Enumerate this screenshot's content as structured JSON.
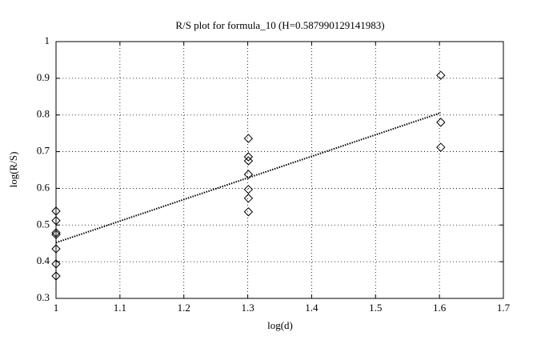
{
  "chart_data": {
    "type": "scatter",
    "title": "R/S plot for formula_10 (H=0.587990129141983)",
    "x_label": "log(d)",
    "y_label": "log(R/S)",
    "xlim": [
      1,
      1.7
    ],
    "ylim": [
      0.3,
      1
    ],
    "xticks": [
      1,
      1.1,
      1.2,
      1.3,
      1.4,
      1.5,
      1.6,
      1.7
    ],
    "yticks": [
      0.3,
      0.4,
      0.5,
      0.6,
      0.7,
      0.8,
      0.9,
      1
    ],
    "grid": true,
    "series": [
      {
        "type": "scatter",
        "marker": "diamond",
        "color": "#000000",
        "x": [
          1,
          1,
          1,
          1,
          1,
          1,
          1,
          1.30103,
          1.30103,
          1.30103,
          1.30103,
          1.30103,
          1.30103,
          1.30103,
          1.60206,
          1.60206,
          1.60206
        ],
        "values": [
          0.538,
          0.512,
          0.479,
          0.474,
          0.435,
          0.394,
          0.361,
          0.736,
          0.686,
          0.675,
          0.638,
          0.597,
          0.573,
          0.536,
          0.908,
          0.78,
          0.712
        ]
      },
      {
        "type": "line",
        "linestyle": "dotted",
        "color": "#000000",
        "x": [
          1,
          1.60206
        ],
        "values": [
          0.452,
          0.806
        ]
      }
    ]
  }
}
